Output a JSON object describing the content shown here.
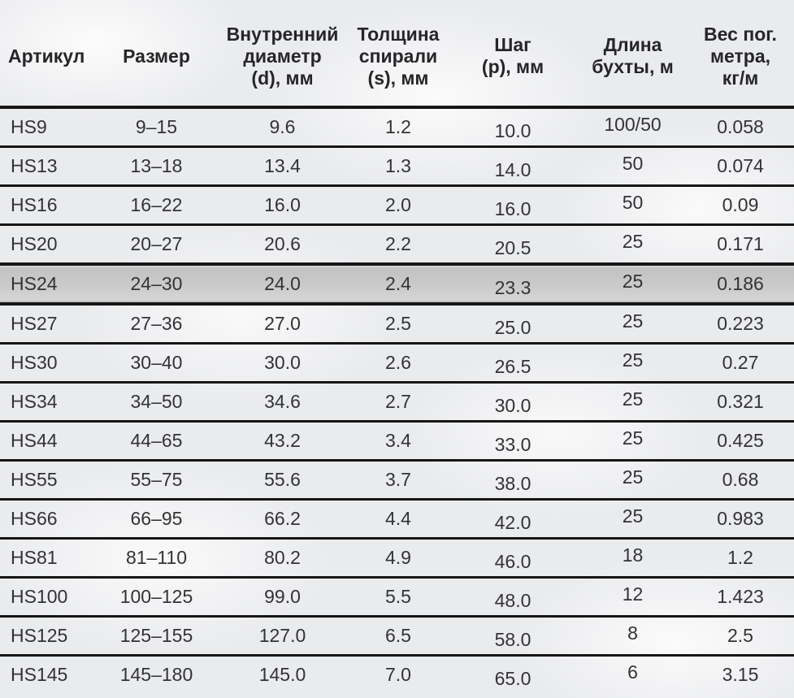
{
  "table": {
    "columns": [
      {
        "label": "Артикул"
      },
      {
        "label": "Размер"
      },
      {
        "label": "Внутренний\nдиаметр\n(d), мм"
      },
      {
        "label": "Толщина\nспирали\n(s), мм"
      },
      {
        "label": "Шаг\n(p), мм"
      },
      {
        "label": "Длина\nбухты, м"
      },
      {
        "label": "Вес пог.\nметра,\nкг/м"
      }
    ],
    "highlighted_article": "HS24",
    "rows": [
      [
        "HS9",
        "9–15",
        "9.6",
        "1.2",
        "10.0",
        "100/50",
        "0.058"
      ],
      [
        "HS13",
        "13–18",
        "13.4",
        "1.3",
        "14.0",
        "50",
        "0.074"
      ],
      [
        "HS16",
        "16–22",
        "16.0",
        "2.0",
        "16.0",
        "50",
        "0.09"
      ],
      [
        "HS20",
        "20–27",
        "20.6",
        "2.2",
        "20.5",
        "25",
        "0.171"
      ],
      [
        "HS24",
        "24–30",
        "24.0",
        "2.4",
        "23.3",
        "25",
        "0.186"
      ],
      [
        "HS27",
        "27–36",
        "27.0",
        "2.5",
        "25.0",
        "25",
        "0.223"
      ],
      [
        "HS30",
        "30–40",
        "30.0",
        "2.6",
        "26.5",
        "25",
        "0.27"
      ],
      [
        "HS34",
        "34–50",
        "34.6",
        "2.7",
        "30.0",
        "25",
        "0.321"
      ],
      [
        "HS44",
        "44–65",
        "43.2",
        "3.4",
        "33.0",
        "25",
        "0.425"
      ],
      [
        "HS55",
        "55–75",
        "55.6",
        "3.7",
        "38.0",
        "25",
        "0.68"
      ],
      [
        "HS66",
        "66–95",
        "66.2",
        "4.4",
        "42.0",
        "25",
        "0.983"
      ],
      [
        "HS81",
        "81–110",
        "80.2",
        "4.9",
        "46.0",
        "18",
        "1.2"
      ],
      [
        "HS100",
        "100–125",
        "99.0",
        "5.5",
        "48.0",
        "12",
        "1.423"
      ],
      [
        "HS125",
        "125–155",
        "127.0",
        "6.5",
        "58.0",
        "8",
        "2.5"
      ],
      [
        "HS145",
        "145–180",
        "145.0",
        "7.0",
        "65.0",
        "6",
        "3.15"
      ]
    ]
  }
}
